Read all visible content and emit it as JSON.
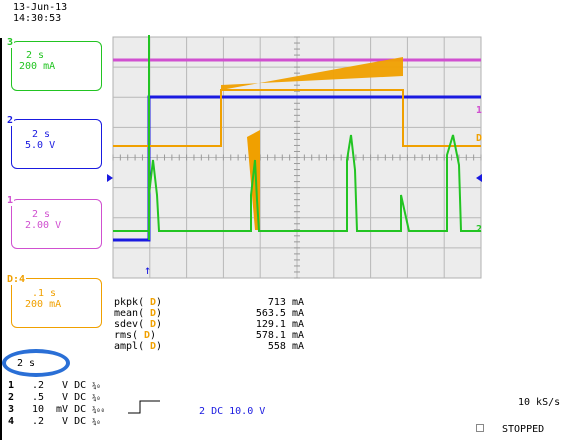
{
  "header": {
    "date": "13-Jun-13",
    "time": "14:30:53"
  },
  "channels": [
    {
      "id": "ch3",
      "label": "3",
      "timebase": "2 s",
      "scale": "200 mA",
      "color": "#22c422"
    },
    {
      "id": "ch2",
      "label": "2",
      "timebase": "2 s",
      "scale": "5.0 V",
      "color": "#1a1ae0"
    },
    {
      "id": "ch1",
      "label": "1",
      "timebase": "2 s",
      "scale": "2.00 V",
      "color": "#d050d0"
    },
    {
      "id": "chD",
      "label": "D:4",
      "timebase": ".1 s",
      "scale": "200 mA",
      "color": "#f0a000"
    }
  ],
  "timebase_main": "2 s",
  "measurements": {
    "rows": [
      {
        "name": "pkpk(",
        "ch": "D",
        "value": "713 mA"
      },
      {
        "name": "mean(",
        "ch": "D",
        "value": "563.5 mA"
      },
      {
        "name": "sdev(",
        "ch": "D",
        "value": "129.1 mA"
      },
      {
        "name": "rms(",
        "ch": "D",
        "value": "578.1 mA"
      },
      {
        "name": "ampl(",
        "ch": "D",
        "value": "558 mA"
      }
    ]
  },
  "right_markers": {
    "m1": "1",
    "mD": "D",
    "m2": "2"
  },
  "channel_settings": [
    {
      "num": "1",
      "volts": ".2",
      "unit": "V",
      "coupling": "DC",
      "bw": "¾₀"
    },
    {
      "num": "2",
      "volts": ".5",
      "unit": "V",
      "coupling": "DC",
      "bw": "¾₀"
    },
    {
      "num": "3",
      "volts": "10",
      "unit": "mV",
      "coupling": "DC",
      "bw": "¾₀₀"
    },
    {
      "num": "4",
      "volts": ".2",
      "unit": "V",
      "coupling": "DC",
      "bw": "¾₀"
    }
  ],
  "trigger": {
    "channel": "2",
    "coupling": "DC",
    "level": "10.0 V"
  },
  "sample_rate": "10 kS/s",
  "status": "STOPPED",
  "colors": {
    "grid_bg": "#ececec",
    "grid_line": "#b0b0b0",
    "magenta": "#d050d0",
    "blue": "#1a1ae0",
    "orange": "#f0a000",
    "green": "#22c422",
    "highlight": "#2a6fd6"
  }
}
